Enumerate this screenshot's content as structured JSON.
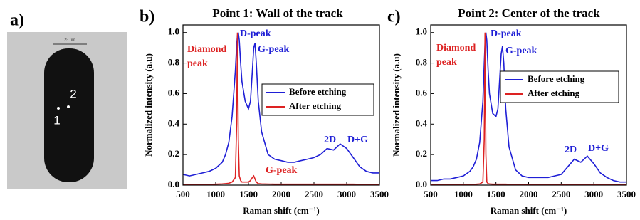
{
  "image_panel": {
    "label": "a)",
    "scale_bar": "25 µm",
    "points": [
      "1",
      "2"
    ]
  },
  "chart_data": [
    {
      "type": "line",
      "panel_label": "b)",
      "title": "Point 1: Wall of the track",
      "xlabel": "Raman shift (cm⁻¹)",
      "ylabel": "Normalized intensity (a.u)",
      "x": [
        500,
        600,
        700,
        800,
        900,
        1000,
        1100,
        1150,
        1200,
        1250,
        1300,
        1320,
        1332,
        1345,
        1360,
        1380,
        1400,
        1450,
        1500,
        1530,
        1560,
        1580,
        1600,
        1620,
        1650,
        1700,
        1800,
        1900,
        2000,
        2100,
        2200,
        2300,
        2400,
        2500,
        2600,
        2700,
        2800,
        2900,
        3000,
        3100,
        3200,
        3300,
        3400,
        3500
      ],
      "series": [
        {
          "name": "Before etching",
          "color": "#1f1fd6",
          "values": [
            0.07,
            0.06,
            0.07,
            0.08,
            0.09,
            0.11,
            0.15,
            0.2,
            0.28,
            0.45,
            0.75,
            0.92,
            0.98,
            1.0,
            0.95,
            0.8,
            0.68,
            0.55,
            0.5,
            0.55,
            0.75,
            0.9,
            0.93,
            0.8,
            0.55,
            0.35,
            0.2,
            0.17,
            0.16,
            0.15,
            0.15,
            0.16,
            0.17,
            0.18,
            0.2,
            0.24,
            0.23,
            0.27,
            0.24,
            0.18,
            0.12,
            0.09,
            0.08,
            0.08
          ]
        },
        {
          "name": "After etching",
          "color": "#dd2222",
          "values": [
            0.005,
            0.005,
            0.005,
            0.005,
            0.005,
            0.006,
            0.008,
            0.01,
            0.012,
            0.02,
            0.05,
            0.4,
            1.0,
            0.3,
            0.06,
            0.03,
            0.02,
            0.02,
            0.02,
            0.03,
            0.05,
            0.06,
            0.04,
            0.02,
            0.01,
            0.008,
            0.007,
            0.006,
            0.006,
            0.006,
            0.006,
            0.006,
            0.006,
            0.006,
            0.006,
            0.006,
            0.006,
            0.006,
            0.006,
            0.006,
            0.005,
            0.005,
            0.005,
            0.005
          ]
        }
      ],
      "annotations": [
        {
          "text": "Diamond",
          "color": "#dd2222"
        },
        {
          "text": "peak",
          "color": "#dd2222"
        },
        {
          "text": "D-peak",
          "color": "#1f1fd6"
        },
        {
          "text": "G-peak",
          "color": "#1f1fd6"
        },
        {
          "text": "2D",
          "color": "#1f1fd6"
        },
        {
          "text": "D+G",
          "color": "#1f1fd6"
        },
        {
          "text": "G-peak",
          "color": "#dd2222"
        }
      ],
      "xlim": [
        500,
        3500
      ],
      "xticks": [
        500,
        1000,
        1500,
        2000,
        2500,
        3000,
        3500
      ],
      "ylim": [
        0,
        1.05
      ],
      "yticks": [
        {
          "value": 0,
          "label": "0.0"
        },
        0.2,
        0.4,
        0.6,
        0.8,
        {
          "value": 1,
          "label": "1.0"
        }
      ],
      "legend": "center right"
    },
    {
      "type": "line",
      "panel_label": "c)",
      "title": "Point 2: Center of the track",
      "xlabel": "Raman shift (cm⁻¹)",
      "ylabel": "Normalized intensity (a.u)",
      "x": [
        500,
        600,
        700,
        800,
        900,
        1000,
        1100,
        1150,
        1200,
        1250,
        1300,
        1320,
        1332,
        1345,
        1360,
        1380,
        1400,
        1450,
        1500,
        1530,
        1560,
        1580,
        1600,
        1620,
        1650,
        1700,
        1800,
        1900,
        2000,
        2100,
        2200,
        2300,
        2400,
        2500,
        2600,
        2700,
        2800,
        2900,
        3000,
        3100,
        3200,
        3300,
        3400,
        3500
      ],
      "series": [
        {
          "name": "Before etching",
          "color": "#1f1fd6",
          "values": [
            0.03,
            0.03,
            0.04,
            0.04,
            0.05,
            0.06,
            0.09,
            0.12,
            0.17,
            0.28,
            0.55,
            0.8,
            0.93,
            1.0,
            0.95,
            0.75,
            0.6,
            0.47,
            0.45,
            0.5,
            0.72,
            0.86,
            0.91,
            0.8,
            0.5,
            0.25,
            0.1,
            0.06,
            0.05,
            0.05,
            0.05,
            0.05,
            0.06,
            0.07,
            0.12,
            0.17,
            0.15,
            0.19,
            0.14,
            0.08,
            0.05,
            0.03,
            0.02,
            0.02
          ]
        },
        {
          "name": "After etching",
          "color": "#dd2222",
          "values": [
            0.005,
            0.005,
            0.005,
            0.005,
            0.005,
            0.005,
            0.005,
            0.005,
            0.006,
            0.008,
            0.02,
            0.3,
            1.0,
            0.2,
            0.02,
            0.01,
            0.008,
            0.006,
            0.006,
            0.006,
            0.006,
            0.006,
            0.006,
            0.006,
            0.006,
            0.005,
            0.005,
            0.005,
            0.005,
            0.005,
            0.005,
            0.005,
            0.005,
            0.005,
            0.005,
            0.005,
            0.005,
            0.005,
            0.005,
            0.005,
            0.005,
            0.005,
            0.005,
            0.005
          ]
        }
      ],
      "annotations": [
        {
          "text": "Diamond",
          "color": "#dd2222"
        },
        {
          "text": "peak",
          "color": "#dd2222"
        },
        {
          "text": "D-peak",
          "color": "#1f1fd6"
        },
        {
          "text": "G-peak",
          "color": "#1f1fd6"
        },
        {
          "text": "2D",
          "color": "#1f1fd6"
        },
        {
          "text": "D+G",
          "color": "#1f1fd6"
        }
      ],
      "xlim": [
        500,
        3500
      ],
      "xticks": [
        500,
        1000,
        1500,
        2000,
        2500,
        3000,
        3500
      ],
      "ylim": [
        0,
        1.05
      ],
      "yticks": [
        {
          "value": 0,
          "label": "0.0"
        },
        0.2,
        0.4,
        0.6,
        0.8,
        {
          "value": 1,
          "label": "1.0"
        }
      ],
      "legend": "center right"
    }
  ]
}
